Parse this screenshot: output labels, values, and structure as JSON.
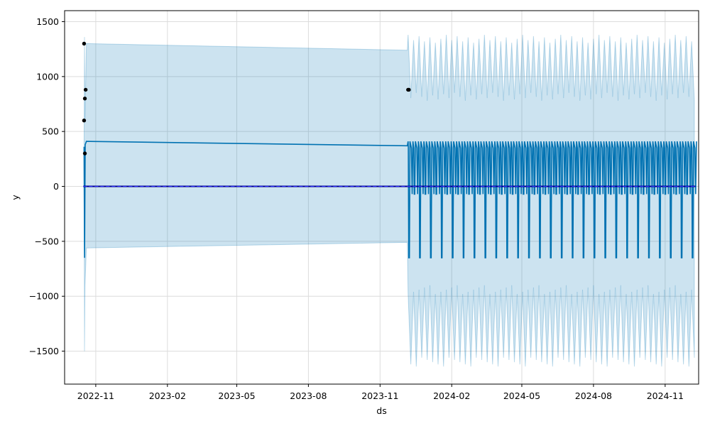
{
  "chart_data": {
    "type": "line",
    "xlabel": "ds",
    "ylabel": "y",
    "xlim": [
      "2022-09-22",
      "2024-12-14"
    ],
    "ylim": [
      -1800,
      1600
    ],
    "grid": true,
    "x_ticks": [
      "2022-11",
      "2023-02",
      "2023-05",
      "2023-08",
      "2023-11",
      "2024-02",
      "2024-05",
      "2024-08",
      "2024-11"
    ],
    "y_ticks": [
      1500,
      1000,
      500,
      0,
      -500,
      -1000,
      -1500
    ],
    "y_tick_labels": [
      "1500",
      "1000",
      "500",
      "0",
      "−500",
      "−1000",
      "−1500"
    ],
    "series": [
      {
        "kind": "scatter",
        "points": [
          {
            "x": "2022-10-17",
            "y": 1300
          },
          {
            "x": "2022-10-17",
            "y": 600
          },
          {
            "x": "2022-10-18",
            "y": 800
          },
          {
            "x": "2022-10-18",
            "y": 300
          },
          {
            "x": "2022-10-19",
            "y": 880
          },
          {
            "x": "2023-12-07",
            "y": 880
          },
          {
            "x": "2023-12-08",
            "y": 880
          }
        ]
      },
      {
        "kind": "line",
        "segments": [
          {
            "from": "2022-10-20",
            "to": "2023-12-06",
            "y_start": 410,
            "y_end": 370
          }
        ],
        "periodic": {
          "start": "2023-12-07",
          "end": "2024-12-10",
          "period_days": 7,
          "high": 410,
          "mid": 350,
          "low_a": -70,
          "low_b": -650
        }
      },
      {
        "kind": "band",
        "segments": [
          {
            "from": "2022-10-20",
            "to": "2023-12-06",
            "upper_start": 1300,
            "upper_end": 1240,
            "lower_start": -560,
            "lower_end": -510
          }
        ],
        "periodic": {
          "upper_high": 1380,
          "upper_low": 780,
          "lower_high": -980,
          "lower_low": -1560
        }
      },
      {
        "kind": "baseline",
        "y": 0,
        "from": "2022-10-16",
        "to": "2024-12-10"
      }
    ]
  },
  "colors": {
    "forecast_line": "#0072B2",
    "uncertainty_band": "#0072B2",
    "observed_points": "#000000",
    "baseline": "#00008B",
    "grid": "#dcdcdc"
  }
}
